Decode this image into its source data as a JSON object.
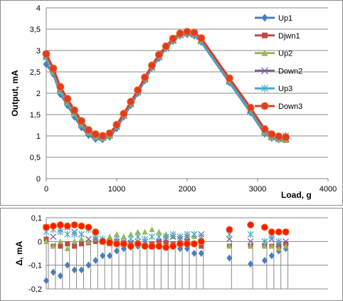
{
  "chart_data": [
    {
      "type": "line",
      "title": "",
      "xlabel": "Load, g",
      "ylabel": "Output, mA",
      "xlim": [
        0,
        4000
      ],
      "ylim": [
        0,
        4
      ],
      "x_ticks": [
        "0",
        "1000",
        "2000",
        "3000",
        "4000"
      ],
      "y_ticks": [
        "0",
        "0,5",
        "1",
        "1,5",
        "2",
        "2,5",
        "3",
        "3,5",
        "4"
      ],
      "grid": "horizontal",
      "legend_position": "right",
      "series": [
        {
          "name": "Up1",
          "color": "#4a7ebb",
          "marker": "diamond",
          "x": [
            0,
            100,
            200,
            300,
            400,
            500,
            600,
            700,
            800,
            900,
            1000,
            1100,
            1200,
            1300,
            1400,
            1500,
            1600,
            1700,
            1800,
            1900,
            2000,
            2100,
            2200,
            2600,
            2900,
            3100,
            3200,
            3300,
            3400
          ],
          "y": [
            2.68,
            2.45,
            1.98,
            1.72,
            1.45,
            1.2,
            1.02,
            0.93,
            0.92,
            0.98,
            1.18,
            1.45,
            1.72,
            2.0,
            2.3,
            2.6,
            2.82,
            3.05,
            3.22,
            3.35,
            3.38,
            3.35,
            3.2,
            2.25,
            1.55,
            1.05,
            0.95,
            0.92,
            0.92
          ]
        },
        {
          "name": "Djwn1",
          "color": "#be4b48",
          "marker": "square",
          "x": [
            0,
            100,
            200,
            300,
            400,
            500,
            600,
            700,
            800,
            900,
            1000,
            1100,
            1200,
            1300,
            1400,
            1500,
            1600,
            1700,
            1800,
            1900,
            2000,
            2100,
            2200,
            2600,
            2900,
            3100,
            3200,
            3300,
            3400
          ],
          "y": [
            2.88,
            2.55,
            2.12,
            1.84,
            1.58,
            1.32,
            1.12,
            1.02,
            0.98,
            1.04,
            1.24,
            1.5,
            1.78,
            2.05,
            2.35,
            2.62,
            2.88,
            3.08,
            3.26,
            3.38,
            3.42,
            3.4,
            3.25,
            2.32,
            1.62,
            1.12,
            1.0,
            0.96,
            0.95
          ]
        },
        {
          "name": "Up2",
          "color": "#98b954",
          "marker": "triangle",
          "x": [
            0,
            100,
            200,
            300,
            400,
            500,
            600,
            700,
            800,
            900,
            1000,
            1100,
            1200,
            1300,
            1400,
            1500,
            1600,
            1700,
            1800,
            1900,
            2000,
            2100,
            2200,
            2600,
            2900,
            3100,
            3200,
            3300,
            3400
          ],
          "y": [
            2.84,
            2.5,
            2.05,
            1.78,
            1.52,
            1.27,
            1.08,
            0.98,
            0.95,
            1.01,
            1.22,
            1.48,
            1.76,
            2.03,
            2.33,
            2.62,
            2.86,
            3.06,
            3.24,
            3.37,
            3.41,
            3.38,
            3.22,
            2.28,
            1.58,
            1.08,
            0.96,
            0.92,
            0.9
          ]
        },
        {
          "name": "Down2",
          "color": "#7d60a0",
          "marker": "x",
          "x": [
            0,
            100,
            200,
            300,
            400,
            500,
            600,
            700,
            800,
            900,
            1000,
            1100,
            1200,
            1300,
            1400,
            1500,
            1600,
            1700,
            1800,
            1900,
            2000,
            2100,
            2200,
            2600,
            2900,
            3100,
            3200,
            3300,
            3400
          ],
          "y": [
            2.9,
            2.56,
            2.1,
            1.82,
            1.57,
            1.31,
            1.1,
            1.0,
            0.96,
            1.02,
            1.22,
            1.48,
            1.76,
            2.03,
            2.34,
            2.61,
            2.86,
            3.07,
            3.25,
            3.37,
            3.41,
            3.39,
            3.24,
            2.3,
            1.6,
            1.1,
            0.98,
            0.94,
            0.93
          ]
        },
        {
          "name": "Up3",
          "color": "#46aac5",
          "marker": "asterisk",
          "x": [
            0,
            100,
            200,
            300,
            400,
            500,
            600,
            700,
            800,
            900,
            1000,
            1100,
            1200,
            1300,
            1400,
            1500,
            1600,
            1700,
            1800,
            1900,
            2000,
            2100,
            2200,
            2600,
            2900,
            3100,
            3200,
            3300,
            3400
          ],
          "y": [
            2.86,
            2.53,
            2.08,
            1.8,
            1.55,
            1.29,
            1.09,
            0.99,
            0.96,
            1.02,
            1.22,
            1.47,
            1.75,
            2.02,
            2.32,
            2.6,
            2.85,
            3.05,
            3.23,
            3.36,
            3.4,
            3.37,
            3.22,
            2.27,
            1.58,
            1.1,
            0.99,
            0.96,
            1.0
          ]
        },
        {
          "name": "Down3",
          "color": "#e03a2a",
          "marker": "circle",
          "x": [
            0,
            100,
            200,
            300,
            400,
            500,
            600,
            700,
            800,
            900,
            1000,
            1100,
            1200,
            1300,
            1400,
            1500,
            1600,
            1700,
            1800,
            1900,
            2000,
            2100,
            2200,
            2600,
            2900,
            3100,
            3200,
            3300,
            3400
          ],
          "y": [
            2.92,
            2.58,
            2.15,
            1.87,
            1.6,
            1.35,
            1.14,
            1.04,
            1.0,
            1.06,
            1.26,
            1.52,
            1.8,
            2.07,
            2.37,
            2.65,
            2.9,
            3.1,
            3.28,
            3.4,
            3.44,
            3.42,
            3.29,
            2.35,
            1.66,
            1.16,
            1.04,
            0.99,
            0.97
          ]
        }
      ]
    },
    {
      "type": "scatter",
      "title": "",
      "xlabel": "",
      "ylabel": "Δ, mA",
      "xlim": [
        0,
        4000
      ],
      "ylim": [
        -0.2,
        0.1
      ],
      "y_ticks": [
        "0,1",
        "0",
        "-0,1",
        "-0,2"
      ],
      "grid": "horizontal",
      "series": [
        {
          "name": "Up1",
          "color": "#4a7ebb",
          "marker": "diamond",
          "x": [
            0,
            100,
            200,
            300,
            400,
            500,
            600,
            700,
            800,
            900,
            1000,
            1100,
            1200,
            1300,
            1400,
            1500,
            1600,
            1700,
            1800,
            1900,
            2000,
            2100,
            2200,
            2600,
            2900,
            3100,
            3200,
            3300,
            3400
          ],
          "y": [
            -0.165,
            -0.13,
            -0.145,
            -0.1,
            -0.12,
            -0.12,
            -0.1,
            -0.08,
            -0.06,
            -0.06,
            -0.04,
            -0.03,
            -0.025,
            -0.02,
            -0.015,
            -0.02,
            -0.02,
            -0.025,
            -0.02,
            -0.03,
            -0.03,
            -0.05,
            -0.05,
            -0.07,
            -0.095,
            -0.08,
            -0.06,
            -0.04,
            -0.03
          ]
        },
        {
          "name": "Djwn1",
          "color": "#be4b48",
          "marker": "square",
          "x": [
            0,
            100,
            200,
            300,
            400,
            500,
            600,
            700,
            800,
            900,
            1000,
            1100,
            1200,
            1300,
            1400,
            1500,
            1600,
            1700,
            1800,
            1900,
            2000,
            2100,
            2200,
            2600,
            2900,
            3100,
            3200,
            3300,
            3400
          ],
          "y": [
            0.01,
            -0.02,
            -0.02,
            -0.01,
            -0.02,
            -0.01,
            -0.005,
            0.0,
            0.0,
            -0.01,
            0.0,
            -0.005,
            -0.01,
            -0.01,
            -0.02,
            -0.01,
            0.0,
            -0.005,
            -0.01,
            -0.01,
            0.0,
            -0.01,
            -0.02,
            -0.02,
            -0.02,
            -0.02,
            -0.02,
            -0.02,
            -0.01
          ]
        },
        {
          "name": "Up2",
          "color": "#98b954",
          "marker": "triangle",
          "x": [
            0,
            100,
            200,
            300,
            400,
            500,
            600,
            700,
            800,
            900,
            1000,
            1100,
            1200,
            1300,
            1400,
            1500,
            1600,
            1700,
            1800,
            1900,
            2000,
            2100,
            2200,
            2600,
            2900,
            3100,
            3200,
            3300,
            3400
          ],
          "y": [
            0.0,
            -0.02,
            0.0,
            -0.03,
            0.0,
            0.01,
            0.0,
            0.01,
            0.01,
            0.02,
            0.03,
            0.02,
            0.03,
            0.04,
            0.04,
            0.05,
            0.04,
            0.03,
            0.02,
            0.02,
            0.02,
            0.02,
            0.0,
            -0.02,
            -0.02,
            -0.02,
            -0.02,
            -0.03,
            -0.02
          ]
        },
        {
          "name": "Down2",
          "color": "#7d60a0",
          "marker": "x",
          "x": [
            0,
            100,
            200,
            300,
            400,
            500,
            600,
            700,
            800,
            900,
            1000,
            1100,
            1200,
            1300,
            1400,
            1500,
            1600,
            1700,
            1800,
            1900,
            2000,
            2100,
            2200,
            2600,
            2900,
            3100,
            3200,
            3300,
            3400
          ],
          "y": [
            0.06,
            0.02,
            0.05,
            0.06,
            0.04,
            0.03,
            0.01,
            0.01,
            0.0,
            -0.005,
            0.0,
            -0.01,
            -0.005,
            0.0,
            0.0,
            -0.02,
            -0.01,
            0.01,
            0.02,
            0.01,
            0.02,
            0.03,
            0.03,
            0.01,
            0.0,
            0.0,
            0.01,
            -0.01,
            0.0
          ]
        },
        {
          "name": "Up3",
          "color": "#46aac5",
          "marker": "asterisk",
          "x": [
            0,
            100,
            200,
            300,
            400,
            500,
            600,
            700,
            800,
            900,
            1000,
            1100,
            1200,
            1300,
            1400,
            1500,
            1600,
            1700,
            1800,
            1900,
            2000,
            2100,
            2200,
            2600,
            2900,
            3100,
            3200,
            3300,
            3400
          ],
          "y": [
            0.04,
            0.05,
            0.04,
            0.03,
            0.03,
            0.03,
            0.05,
            0.02,
            0.01,
            0.0,
            0.01,
            0.0,
            0.01,
            0.02,
            0.01,
            0.02,
            0.02,
            0.02,
            0.03,
            0.02,
            0.03,
            0.03,
            0.02,
            0.03,
            0.03,
            0.0,
            0.02,
            0.0,
            0.04
          ]
        },
        {
          "name": "Down3",
          "color": "#ff1a00",
          "marker": "circle",
          "x": [
            0,
            100,
            200,
            300,
            400,
            500,
            600,
            700,
            800,
            900,
            1000,
            1100,
            1200,
            1300,
            1400,
            1500,
            1600,
            1700,
            1800,
            1900,
            2000,
            2100,
            2200,
            2600,
            2900,
            3100,
            3200,
            3300,
            3400
          ],
          "y": [
            0.06,
            0.065,
            0.07,
            0.065,
            0.07,
            0.065,
            0.06,
            0.04,
            0.0,
            -0.005,
            -0.01,
            -0.01,
            -0.02,
            -0.01,
            -0.02,
            -0.02,
            -0.02,
            -0.025,
            -0.02,
            -0.01,
            -0.01,
            -0.01,
            0.0,
            0.05,
            0.07,
            0.06,
            0.04,
            0.04,
            0.04
          ]
        }
      ]
    }
  ]
}
